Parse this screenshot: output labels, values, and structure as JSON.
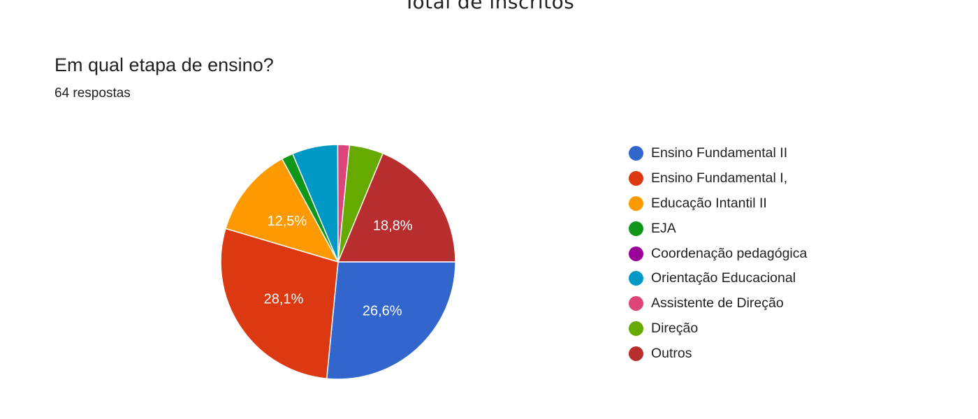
{
  "page": {
    "title": "Total de inscritos"
  },
  "question": {
    "title": "Em qual etapa de ensino?",
    "responses": "64 respostas"
  },
  "chart_data": {
    "type": "pie",
    "title": "Em qual etapa de ensino?",
    "subtitle": "64 respostas",
    "legend_position": "right",
    "slices": [
      {
        "label": "Ensino Fundamental II",
        "value": 26.6,
        "color": "#3366cc",
        "data_label": "26,6%"
      },
      {
        "label": "Ensino Fundamental I,",
        "value": 28.1,
        "color": "#dc3912",
        "data_label": "28,1%"
      },
      {
        "label": "Educação Intantil II",
        "value": 12.5,
        "color": "#ff9900",
        "data_label": "12,5%"
      },
      {
        "label": "EJA",
        "value": 1.6,
        "color": "#109618",
        "data_label": ""
      },
      {
        "label": "Coordenação pedagógica",
        "value": 0,
        "color": "#990099",
        "data_label": ""
      },
      {
        "label": "Orientação Educacional",
        "value": 6.3,
        "color": "#0099c6",
        "data_label": ""
      },
      {
        "label": "Assistente de Direção",
        "value": 1.6,
        "color": "#dd4477",
        "data_label": ""
      },
      {
        "label": "Direção",
        "value": 4.7,
        "color": "#66aa00",
        "data_label": ""
      },
      {
        "label": "Outros",
        "value": 18.8,
        "color": "#b82e2e",
        "data_label": "18,8%"
      }
    ]
  }
}
